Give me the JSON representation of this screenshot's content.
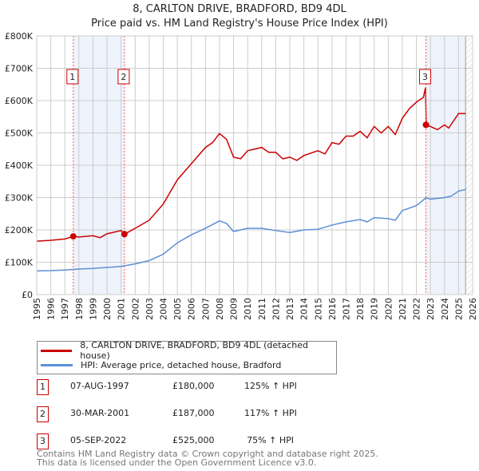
{
  "chart_data": {
    "type": "line",
    "title": "8, CARLTON DRIVE, BRADFORD, BD9 4DL",
    "subtitle": "Price paid vs. HM Land Registry's House Price Index (HPI)",
    "xlim": [
      1995,
      2026
    ],
    "ylim": [
      0,
      800000
    ],
    "y_ticks": [
      "£0",
      "£100K",
      "£200K",
      "£300K",
      "£400K",
      "£500K",
      "£600K",
      "£700K",
      "£800K"
    ],
    "x_ticks": [
      "1995",
      "1996",
      "1997",
      "1998",
      "1999",
      "2000",
      "2001",
      "2002",
      "2003",
      "2004",
      "2005",
      "2006",
      "2007",
      "2008",
      "2009",
      "2010",
      "2011",
      "2012",
      "2013",
      "2014",
      "2015",
      "2016",
      "2017",
      "2018",
      "2019",
      "2020",
      "2021",
      "2022",
      "2023",
      "2024",
      "2025",
      "2026"
    ],
    "grid": true,
    "series": [
      {
        "name": "8, CARLTON DRIVE, BRADFORD, BD9 4DL (detached house)",
        "color": "#cc0000",
        "x": [
          1995,
          1996,
          1997,
          1997.6,
          1998,
          1999,
          1999.5,
          2000,
          2001,
          2001.25,
          2002,
          2003,
          2004,
          2005,
          2006,
          2007,
          2007.5,
          2008,
          2008.5,
          2009,
          2009.5,
          2010,
          2011,
          2011.5,
          2012,
          2012.5,
          2013,
          2013.5,
          2014,
          2015,
          2015.5,
          2016,
          2016.5,
          2017,
          2017.5,
          2018,
          2018.5,
          2019,
          2019.5,
          2020,
          2020.5,
          2021,
          2021.5,
          2022,
          2022.5,
          2022.65,
          2022.7,
          2023,
          2023.5,
          2024,
          2024.3,
          2025,
          2025.5
        ],
        "y": [
          165000,
          168000,
          172000,
          180000,
          178000,
          182000,
          176000,
          188000,
          198000,
          187000,
          205000,
          230000,
          280000,
          355000,
          405000,
          455000,
          470000,
          498000,
          480000,
          425000,
          420000,
          445000,
          455000,
          440000,
          440000,
          420000,
          425000,
          415000,
          430000,
          445000,
          435000,
          470000,
          465000,
          490000,
          490000,
          505000,
          485000,
          520000,
          500000,
          520000,
          495000,
          545000,
          575000,
          595000,
          610000,
          640000,
          525000,
          520000,
          510000,
          525000,
          515000,
          560000,
          560000
        ]
      },
      {
        "name": "HPI: Average price, detached house, Bradford",
        "color": "#5b8fd6",
        "x": [
          1995,
          1996,
          1997,
          1998,
          1999,
          2000,
          2001,
          2002,
          2003,
          2004,
          2005,
          2006,
          2007,
          2008,
          2008.5,
          2009,
          2010,
          2011,
          2012,
          2013,
          2014,
          2015,
          2016,
          2017,
          2018,
          2018.5,
          2019,
          2020,
          2020.5,
          2021,
          2022,
          2022.7,
          2023,
          2024,
          2024.5,
          2025,
          2025.5
        ],
        "y": [
          73000,
          74000,
          76000,
          79000,
          81000,
          84000,
          87000,
          95000,
          105000,
          125000,
          160000,
          185000,
          205000,
          228000,
          220000,
          195000,
          205000,
          205000,
          198000,
          192000,
          200000,
          202000,
          215000,
          225000,
          232000,
          225000,
          238000,
          235000,
          230000,
          260000,
          275000,
          300000,
          295000,
          300000,
          305000,
          320000,
          325000
        ]
      }
    ],
    "sales": [
      {
        "label": "1",
        "x": 1997.6,
        "price": 180000,
        "date": "07-AUG-1997",
        "price_text": "£180,000",
        "hpi": "125% ↑ HPI"
      },
      {
        "label": "2",
        "x": 2001.24,
        "price": 187000,
        "date": "30-MAR-2001",
        "price_text": "£187,000",
        "hpi": "117% ↑ HPI"
      },
      {
        "label": "3",
        "x": 2022.68,
        "price": 525000,
        "date": "05-SEP-2022",
        "price_text": "£525,000",
        "hpi": "75% ↑ HPI"
      }
    ],
    "legend_position": "below"
  },
  "footer": {
    "line1": "Contains HM Land Registry data © Crown copyright and database right 2025.",
    "line2": "This data is licensed under the Open Government Licence v3.0."
  }
}
